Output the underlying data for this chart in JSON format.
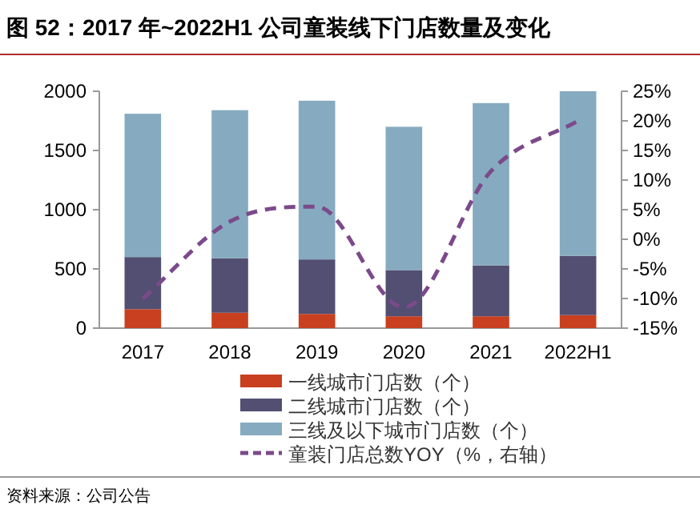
{
  "chart_data": {
    "type": "bar",
    "title": "图 52：2017 年~2022H1 公司童装线下门店数量及变化",
    "stacked": true,
    "categories": [
      "2017",
      "2018",
      "2019",
      "2020",
      "2021",
      "2022H1"
    ],
    "series": [
      {
        "name": "一线城市门店数（个）",
        "color": "#c8401f",
        "values": [
          160,
          130,
          120,
          100,
          100,
          110
        ]
      },
      {
        "name": "二线城市门店数（个）",
        "color": "#524f72",
        "values": [
          440,
          460,
          460,
          390,
          430,
          500
        ]
      },
      {
        "name": "三线及以下城市门店数（个）",
        "color": "#86abc0",
        "values": [
          1210,
          1250,
          1340,
          1210,
          1370,
          1390
        ]
      },
      {
        "name": "童装门店总数YOY（%，右轴）",
        "type": "line",
        "axis": "y2",
        "color": "#7b4a8a",
        "line_style": "dashed",
        "values": [
          -10,
          3,
          5.5,
          -11.5,
          11.5,
          20
        ]
      }
    ],
    "ylim": [
      0,
      2000
    ],
    "yticks": [
      0,
      500,
      1000,
      1500,
      2000
    ],
    "y2lim": [
      -15,
      25
    ],
    "y2ticks": [
      {
        "value": -15,
        "label": "-15%"
      },
      {
        "value": -10,
        "label": "-10%"
      },
      {
        "value": -5,
        "label": "-5%"
      },
      {
        "value": 0,
        "label": "0%"
      },
      {
        "value": 5,
        "label": "5%"
      },
      {
        "value": 10,
        "label": "10%"
      },
      {
        "value": 15,
        "label": "15%"
      },
      {
        "value": 20,
        "label": "20%"
      },
      {
        "value": 25,
        "label": "25%"
      }
    ],
    "legend": "bottom",
    "grid": false,
    "annotations": [
      "资料来源：公司公告"
    ]
  }
}
